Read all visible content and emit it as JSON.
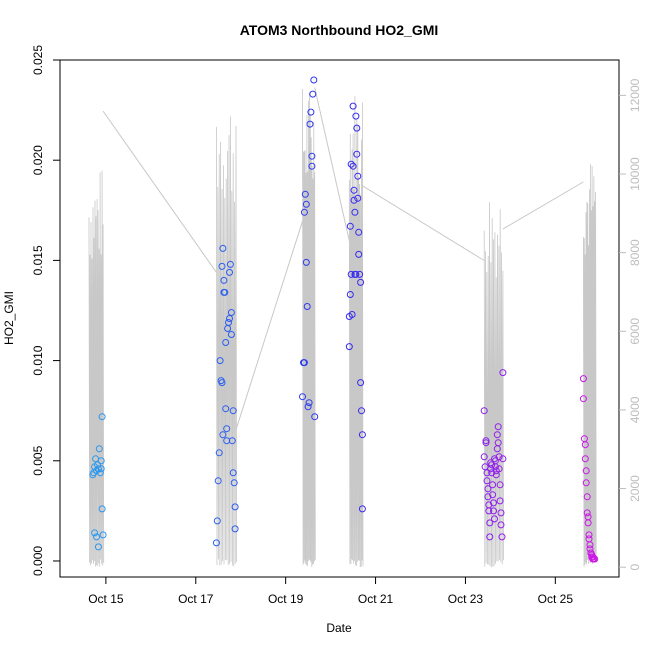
{
  "chart_data": {
    "type": "scatter",
    "title": "ATOM3 Northbound HO2_GMI",
    "xlabel": "Date",
    "ylabel": "HO2_GMI",
    "xlim": [
      "2016-10-13T23:30",
      "2016-10-26T10:00"
    ],
    "ylim": [
      -0.0008,
      0.025
    ],
    "y2lim": [
      -250,
      12900
    ],
    "x_ticks": [
      {
        "date": "2016-10-15",
        "label": "Oct 15"
      },
      {
        "date": "2016-10-17",
        "label": "Oct 17"
      },
      {
        "date": "2016-10-19",
        "label": "Oct 19"
      },
      {
        "date": "2016-10-21",
        "label": "Oct 21"
      },
      {
        "date": "2016-10-23",
        "label": "Oct 23"
      },
      {
        "date": "2016-10-25",
        "label": "Oct 25"
      }
    ],
    "y_ticks": [
      {
        "value": 0.0,
        "label": "0.000"
      },
      {
        "value": 0.005,
        "label": "0.005"
      },
      {
        "value": 0.01,
        "label": "0.010"
      },
      {
        "value": 0.015,
        "label": "0.015"
      },
      {
        "value": 0.02,
        "label": "0.020"
      },
      {
        "value": 0.025,
        "label": "0.025"
      }
    ],
    "y2_ticks": [
      {
        "value": 0,
        "label": "0"
      },
      {
        "value": 2000,
        "label": "2000"
      },
      {
        "value": 4000,
        "label": "4000"
      },
      {
        "value": 6000,
        "label": "6000"
      },
      {
        "value": 8000,
        "label": "8000"
      },
      {
        "value": 10000,
        "label": "10000"
      },
      {
        "value": 12000,
        "label": "12000"
      }
    ],
    "grid": false,
    "series": [
      {
        "kind": "points",
        "axis": "left",
        "color_ramp": [
          "#29a8ee",
          "#2c2cf0",
          "#e012e8"
        ],
        "points": [
          [
            "2016-10-14T17:00",
            0.0043
          ],
          [
            "2016-10-14T17:30",
            0.0044
          ],
          [
            "2016-10-14T18:00",
            0.0047
          ],
          [
            "2016-10-14T18:30",
            0.0051
          ],
          [
            "2016-10-14T19:00",
            0.0045
          ],
          [
            "2016-10-14T19:30",
            0.0048
          ],
          [
            "2016-10-14T20:00",
            0.0046
          ],
          [
            "2016-10-14T20:30",
            0.0056
          ],
          [
            "2016-10-14T21:00",
            0.0044
          ],
          [
            "2016-10-14T21:30",
            0.0046
          ],
          [
            "2016-10-14T18:00",
            0.0014
          ],
          [
            "2016-10-14T19:00",
            0.0012
          ],
          [
            "2016-10-14T20:00",
            0.0007
          ],
          [
            "2016-10-14T21:30",
            0.005
          ],
          [
            "2016-10-14T22:00",
            0.0072
          ],
          [
            "2016-10-14T22:00",
            0.0026
          ],
          [
            "2016-10-14T22:30",
            0.0013
          ],
          [
            "2016-10-17T11:00",
            0.0009
          ],
          [
            "2016-10-17T11:30",
            0.002
          ],
          [
            "2016-10-17T12:00",
            0.004
          ],
          [
            "2016-10-17T12:30",
            0.0054
          ],
          [
            "2016-10-17T13:00",
            0.01
          ],
          [
            "2016-10-17T13:30",
            0.009
          ],
          [
            "2016-10-17T14:00",
            0.0089
          ],
          [
            "2016-10-17T14:30",
            0.0063
          ],
          [
            "2016-10-17T14:00",
            0.0147
          ],
          [
            "2016-10-17T14:30",
            0.0156
          ],
          [
            "2016-10-17T15:00",
            0.014
          ],
          [
            "2016-10-17T15:30",
            0.0134
          ],
          [
            "2016-10-17T15:00",
            0.0134
          ],
          [
            "2016-10-17T16:00",
            0.0109
          ],
          [
            "2016-10-17T16:00",
            0.0076
          ],
          [
            "2016-10-17T16:30",
            0.0066
          ],
          [
            "2016-10-17T16:30",
            0.006
          ],
          [
            "2016-10-17T17:00",
            0.0116
          ],
          [
            "2016-10-17T17:30",
            0.0119
          ],
          [
            "2016-10-17T18:00",
            0.0121
          ],
          [
            "2016-10-17T18:00",
            0.0144
          ],
          [
            "2016-10-17T18:30",
            0.0148
          ],
          [
            "2016-10-17T19:00",
            0.0124
          ],
          [
            "2016-10-17T19:00",
            0.0113
          ],
          [
            "2016-10-17T19:30",
            0.006
          ],
          [
            "2016-10-17T20:00",
            0.0075
          ],
          [
            "2016-10-17T20:00",
            0.0044
          ],
          [
            "2016-10-17T20:30",
            0.0039
          ],
          [
            "2016-10-17T21:00",
            0.0027
          ],
          [
            "2016-10-17T21:00",
            0.0016
          ],
          [
            "2016-10-19T09:00",
            0.0082
          ],
          [
            "2016-10-19T09:30",
            0.0099
          ],
          [
            "2016-10-19T10:00",
            0.0099
          ],
          [
            "2016-10-19T10:00",
            0.0174
          ],
          [
            "2016-10-19T10:30",
            0.0183
          ],
          [
            "2016-10-19T11:00",
            0.0178
          ],
          [
            "2016-10-19T11:00",
            0.0149
          ],
          [
            "2016-10-19T11:30",
            0.0127
          ],
          [
            "2016-10-19T12:00",
            0.0077
          ],
          [
            "2016-10-19T12:30",
            0.0079
          ],
          [
            "2016-10-19T13:00",
            0.0218
          ],
          [
            "2016-10-19T13:30",
            0.0224
          ],
          [
            "2016-10-19T14:00",
            0.0202
          ],
          [
            "2016-10-19T14:00",
            0.0197
          ],
          [
            "2016-10-19T14:30",
            0.0233
          ],
          [
            "2016-10-19T15:00",
            0.024
          ],
          [
            "2016-10-19T15:30",
            0.0072
          ],
          [
            "2016-10-20T10:00",
            0.0107
          ],
          [
            "2016-10-20T10:00",
            0.0122
          ],
          [
            "2016-10-20T10:30",
            0.0133
          ],
          [
            "2016-10-20T10:30",
            0.0167
          ],
          [
            "2016-10-20T11:00",
            0.0198
          ],
          [
            "2016-10-20T11:00",
            0.0143
          ],
          [
            "2016-10-20T11:30",
            0.0123
          ],
          [
            "2016-10-20T12:00",
            0.0227
          ],
          [
            "2016-10-20T12:00",
            0.0197
          ],
          [
            "2016-10-20T12:30",
            0.0185
          ],
          [
            "2016-10-20T12:30",
            0.018
          ],
          [
            "2016-10-20T13:00",
            0.0174
          ],
          [
            "2016-10-20T13:00",
            0.0143
          ],
          [
            "2016-10-20T13:30",
            0.0143
          ],
          [
            "2016-10-20T13:30",
            0.0222
          ],
          [
            "2016-10-20T14:00",
            0.0216
          ],
          [
            "2016-10-20T14:00",
            0.0203
          ],
          [
            "2016-10-20T14:30",
            0.0192
          ],
          [
            "2016-10-20T14:30",
            0.0181
          ],
          [
            "2016-10-20T15:00",
            0.0164
          ],
          [
            "2016-10-20T15:00",
            0.0153
          ],
          [
            "2016-10-20T15:30",
            0.0143
          ],
          [
            "2016-10-20T16:00",
            0.0139
          ],
          [
            "2016-10-20T16:00",
            0.0089
          ],
          [
            "2016-10-20T16:30",
            0.0075
          ],
          [
            "2016-10-20T17:00",
            0.0063
          ],
          [
            "2016-10-20T17:00",
            0.0026
          ],
          [
            "2016-10-23T10:00",
            0.0075
          ],
          [
            "2016-10-23T10:00",
            0.0052
          ],
          [
            "2016-10-23T10:30",
            0.0047
          ],
          [
            "2016-10-23T11:00",
            0.0059
          ],
          [
            "2016-10-23T11:00",
            0.006
          ],
          [
            "2016-10-23T11:30",
            0.0044
          ],
          [
            "2016-10-23T11:30",
            0.004
          ],
          [
            "2016-10-23T12:00",
            0.0036
          ],
          [
            "2016-10-23T12:00",
            0.0032
          ],
          [
            "2016-10-23T12:30",
            0.0028
          ],
          [
            "2016-10-23T12:30",
            0.0025
          ],
          [
            "2016-10-23T13:00",
            0.0019
          ],
          [
            "2016-10-23T13:00",
            0.0012
          ],
          [
            "2016-10-23T13:30",
            0.0046
          ],
          [
            "2016-10-23T13:30",
            0.0049
          ],
          [
            "2016-10-23T14:00",
            0.0048
          ],
          [
            "2016-10-23T14:00",
            0.0044
          ],
          [
            "2016-10-23T14:30",
            0.0038
          ],
          [
            "2016-10-23T14:30",
            0.0033
          ],
          [
            "2016-10-23T15:00",
            0.0029
          ],
          [
            "2016-10-23T15:00",
            0.0025
          ],
          [
            "2016-10-23T15:30",
            0.0021
          ],
          [
            "2016-10-23T15:30",
            0.0051
          ],
          [
            "2016-10-23T16:00",
            0.005
          ],
          [
            "2016-10-23T16:00",
            0.0047
          ],
          [
            "2016-10-23T16:30",
            0.0045
          ],
          [
            "2016-10-23T16:30",
            0.0043
          ],
          [
            "2016-10-23T17:00",
            0.0056
          ],
          [
            "2016-10-23T17:00",
            0.0063
          ],
          [
            "2016-10-23T17:30",
            0.0067
          ],
          [
            "2016-10-23T17:30",
            0.0059
          ],
          [
            "2016-10-23T18:00",
            0.0052
          ],
          [
            "2016-10-23T18:00",
            0.0046
          ],
          [
            "2016-10-23T18:30",
            0.0038
          ],
          [
            "2016-10-23T18:30",
            0.003
          ],
          [
            "2016-10-23T19:00",
            0.0024
          ],
          [
            "2016-10-23T19:00",
            0.0018
          ],
          [
            "2016-10-23T19:30",
            0.0012
          ],
          [
            "2016-10-23T20:00",
            0.0051
          ],
          [
            "2016-10-23T20:00",
            0.0094
          ],
          [
            "2016-10-25T15:00",
            0.0091
          ],
          [
            "2016-10-25T15:00",
            0.0081
          ],
          [
            "2016-10-25T15:30",
            0.0061
          ],
          [
            "2016-10-25T16:00",
            0.0058
          ],
          [
            "2016-10-25T16:00",
            0.0051
          ],
          [
            "2016-10-25T16:30",
            0.0045
          ],
          [
            "2016-10-25T16:30",
            0.0039
          ],
          [
            "2016-10-25T17:00",
            0.0032
          ],
          [
            "2016-10-25T17:00",
            0.0024
          ],
          [
            "2016-10-25T17:30",
            0.0022
          ],
          [
            "2016-10-25T17:30",
            0.0019
          ],
          [
            "2016-10-25T18:00",
            0.0013
          ],
          [
            "2016-10-25T18:00",
            0.0011
          ],
          [
            "2016-10-25T18:30",
            0.0008
          ],
          [
            "2016-10-25T18:30",
            0.0006
          ],
          [
            "2016-10-25T19:00",
            0.0004
          ],
          [
            "2016-10-25T19:00",
            0.0004
          ],
          [
            "2016-10-25T19:30",
            0.0003
          ],
          [
            "2016-10-25T19:30",
            0.0002
          ],
          [
            "2016-10-25T20:00",
            0.0002
          ],
          [
            "2016-10-25T20:00",
            0.0001
          ],
          [
            "2016-10-25T20:30",
            0.0001
          ],
          [
            "2016-10-25T21:00",
            0.0001
          ]
        ]
      },
      {
        "kind": "line",
        "axis": "right",
        "color": "#c8c8c8",
        "flights": [
          {
            "start": "2016-10-14T15:00",
            "end": "2016-10-14T22:30",
            "max": 10200
          },
          {
            "start": "2016-10-17T11:00",
            "end": "2016-10-17T21:30",
            "max": 12200
          },
          {
            "start": "2016-10-19T09:00",
            "end": "2016-10-19T15:30",
            "max": 12300
          },
          {
            "start": "2016-10-20T10:00",
            "end": "2016-10-20T17:00",
            "max": 12300
          },
          {
            "start": "2016-10-23T10:00",
            "end": "2016-10-23T20:00",
            "max": 9800
          },
          {
            "start": "2016-10-25T15:00",
            "end": "2016-10-25T21:30",
            "max": 10500
          }
        ],
        "transits": [
          [
            "2016-10-14T22:30",
            11600
          ],
          [
            "2016-10-17T11:00",
            7500
          ],
          [
            "2016-10-17T21:30",
            3500
          ],
          [
            "2016-10-19T09:00",
            8800
          ],
          [
            "2016-10-19T15:30",
            12200
          ],
          [
            "2016-10-20T10:00",
            8300
          ],
          [
            "2016-10-20T17:00",
            9700
          ],
          [
            "2016-10-23T10:00",
            7800
          ],
          [
            "2016-10-23T20:00",
            8600
          ],
          [
            "2016-10-25T15:00",
            9800
          ]
        ]
      }
    ]
  }
}
